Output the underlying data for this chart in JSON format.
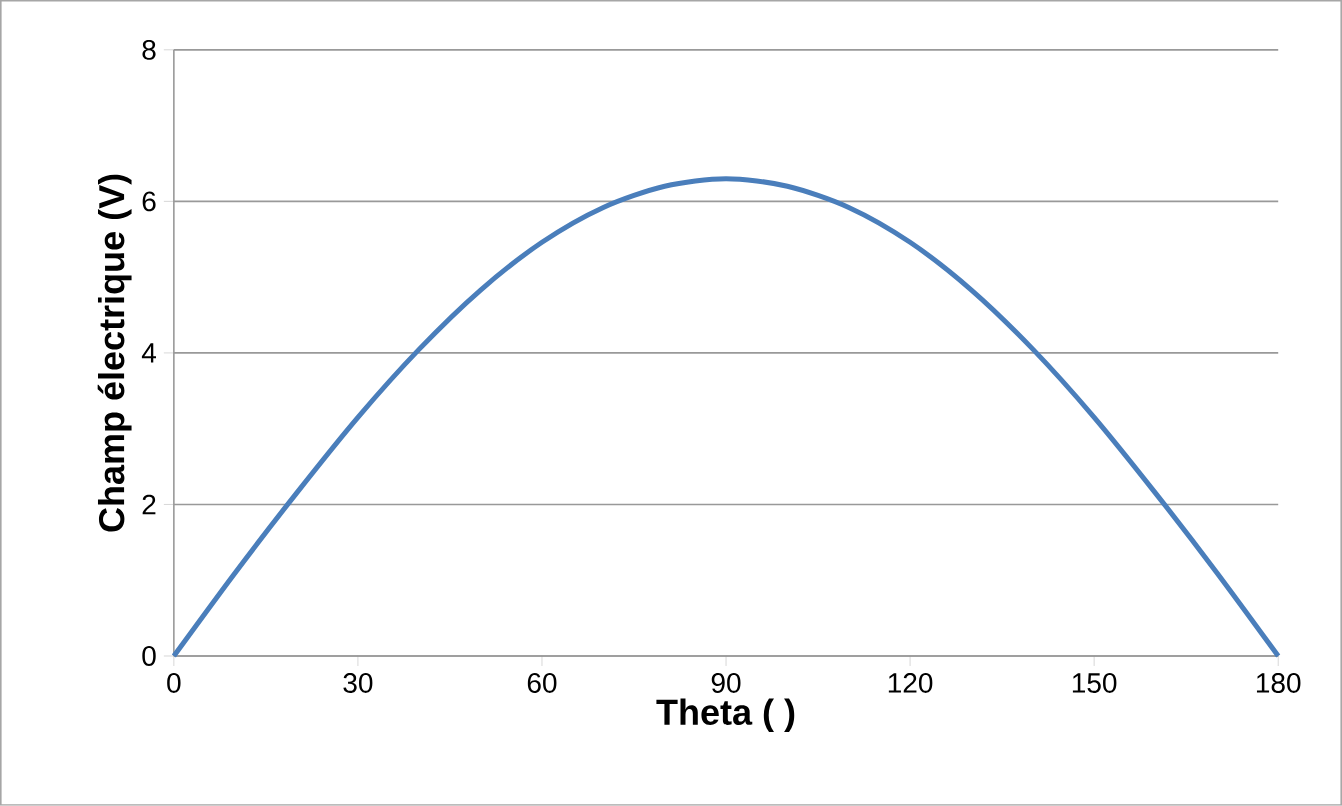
{
  "chart_data": {
    "type": "line",
    "xlabel": "Theta ( )",
    "ylabel": "Champ électrique (V)",
    "x": [
      0,
      10,
      20,
      30,
      40,
      50,
      60,
      70,
      80,
      90,
      100,
      110,
      120,
      130,
      140,
      150,
      160,
      170,
      180
    ],
    "series": [
      {
        "color": "#4a7ebb",
        "values": [
          0,
          1.1,
          2.15,
          3.15,
          4.05,
          4.83,
          5.46,
          5.92,
          6.2,
          6.3,
          6.2,
          5.92,
          5.46,
          4.83,
          4.05,
          3.15,
          2.15,
          1.1,
          0
        ]
      }
    ],
    "xlim": [
      0,
      180
    ],
    "ylim": [
      0,
      8
    ],
    "xticks": [
      0,
      30,
      60,
      90,
      120,
      150,
      180
    ],
    "yticks": [
      0,
      2,
      4,
      6,
      8
    ],
    "grid": "y"
  }
}
